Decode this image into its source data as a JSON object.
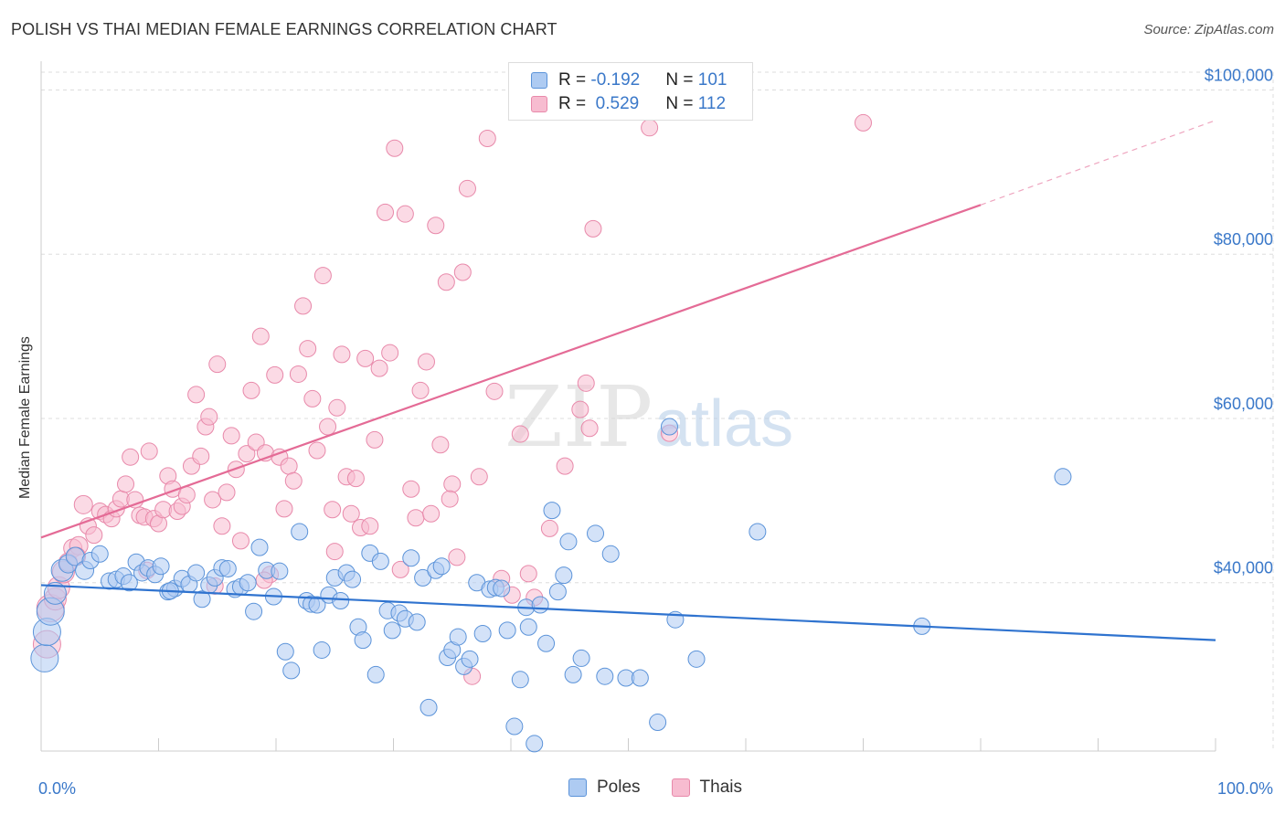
{
  "title": "POLISH VS THAI MEDIAN FEMALE EARNINGS CORRELATION CHART",
  "source": "Source: ZipAtlas.com",
  "watermark": {
    "zip": "ZIP",
    "atlas": "atlas"
  },
  "colors": {
    "poles_fill": "#aecbf2",
    "poles_stroke": "#5b93d9",
    "poles_line": "#2f73cf",
    "thais_fill": "#f7bcd0",
    "thais_stroke": "#e889aa",
    "thais_line": "#e46b96",
    "tick_text": "#3a78c9",
    "grid": "#dddddd"
  },
  "legend": {
    "rows": [
      {
        "r_label": "R = ",
        "r_value": "-0.192",
        "n_label": "N = ",
        "n_value": "101"
      },
      {
        "r_label": "R = ",
        "r_value": " 0.529",
        "n_label": "N = ",
        "n_value": "112"
      }
    ]
  },
  "bottom_legend": {
    "poles": "Poles",
    "thais": "Thais"
  },
  "chart_data": {
    "type": "scatter",
    "title": "POLISH VS THAI MEDIAN FEMALE EARNINGS CORRELATION CHART",
    "xlabel": "",
    "ylabel": "Median Female Earnings",
    "xlim": [
      0,
      100
    ],
    "ylim": [
      19500,
      103500
    ],
    "x_tick_labels": [
      "0.0%",
      "100.0%"
    ],
    "y_ticks": [
      40000,
      60000,
      80000,
      100000
    ],
    "y_tick_labels": [
      "$40,000",
      "$60,000",
      "$80,000",
      "$100,000"
    ],
    "grid": true,
    "series": [
      {
        "name": "Poles",
        "r": -0.192,
        "n": 101,
        "trend": {
          "x0": 0,
          "y0": 39700,
          "x1": 100,
          "y1": 33000,
          "dashed_from": null
        },
        "points": [
          [
            0.3,
            30800
          ],
          [
            0.5,
            34000
          ],
          [
            0.8,
            36500
          ],
          [
            1.2,
            38700
          ],
          [
            1.8,
            41500
          ],
          [
            2.3,
            42300
          ],
          [
            2.9,
            43200
          ],
          [
            3.7,
            41500
          ],
          [
            4.2,
            42700
          ],
          [
            5.0,
            43500
          ],
          [
            5.8,
            40200
          ],
          [
            6.4,
            40400
          ],
          [
            7.0,
            40800
          ],
          [
            7.5,
            40000
          ],
          [
            8.1,
            42500
          ],
          [
            8.6,
            41200
          ],
          [
            9.1,
            41800
          ],
          [
            9.7,
            41000
          ],
          [
            10.2,
            42000
          ],
          [
            10.8,
            38900
          ],
          [
            11.4,
            39300
          ],
          [
            12.0,
            40500
          ],
          [
            12.6,
            39800
          ],
          [
            13.2,
            41200
          ],
          [
            13.7,
            38000
          ],
          [
            14.3,
            39700
          ],
          [
            14.8,
            40600
          ],
          [
            15.4,
            41800
          ],
          [
            15.9,
            41700
          ],
          [
            16.5,
            39200
          ],
          [
            17.0,
            39500
          ],
          [
            17.6,
            40000
          ],
          [
            18.1,
            36500
          ],
          [
            18.6,
            44300
          ],
          [
            19.2,
            41500
          ],
          [
            19.8,
            38300
          ],
          [
            20.3,
            41400
          ],
          [
            20.8,
            31600
          ],
          [
            21.3,
            29300
          ],
          [
            22.0,
            46200
          ],
          [
            22.6,
            37800
          ],
          [
            23.0,
            37400
          ],
          [
            23.5,
            37300
          ],
          [
            23.9,
            31800
          ],
          [
            24.5,
            38500
          ],
          [
            25.0,
            40600
          ],
          [
            25.5,
            37800
          ],
          [
            26.0,
            41200
          ],
          [
            26.5,
            40400
          ],
          [
            27.0,
            34600
          ],
          [
            27.4,
            33000
          ],
          [
            28.0,
            43600
          ],
          [
            28.5,
            28800
          ],
          [
            28.9,
            42600
          ],
          [
            29.5,
            36600
          ],
          [
            29.9,
            34200
          ],
          [
            30.5,
            36300
          ],
          [
            31.0,
            35600
          ],
          [
            31.5,
            43000
          ],
          [
            32.0,
            35200
          ],
          [
            32.5,
            40600
          ],
          [
            33.0,
            24800
          ],
          [
            33.6,
            41500
          ],
          [
            34.1,
            42000
          ],
          [
            34.6,
            30900
          ],
          [
            35.0,
            31800
          ],
          [
            35.5,
            33400
          ],
          [
            36.0,
            29800
          ],
          [
            36.5,
            30700
          ],
          [
            37.1,
            40000
          ],
          [
            37.6,
            33800
          ],
          [
            38.2,
            39200
          ],
          [
            38.7,
            39400
          ],
          [
            39.2,
            39300
          ],
          [
            39.7,
            34200
          ],
          [
            40.3,
            22500
          ],
          [
            40.8,
            28200
          ],
          [
            41.3,
            37000
          ],
          [
            42.0,
            20400
          ],
          [
            42.5,
            37300
          ],
          [
            43.0,
            32600
          ],
          [
            43.5,
            48800
          ],
          [
            44.0,
            38900
          ],
          [
            44.5,
            40900
          ],
          [
            44.9,
            45000
          ],
          [
            45.3,
            28800
          ],
          [
            46.0,
            30800
          ],
          [
            47.2,
            46000
          ],
          [
            48.0,
            28600
          ],
          [
            48.5,
            43500
          ],
          [
            49.8,
            28400
          ],
          [
            51.0,
            28400
          ],
          [
            52.5,
            23000
          ],
          [
            53.5,
            59000
          ],
          [
            54.0,
            35500
          ],
          [
            55.8,
            30700
          ],
          [
            61.0,
            46200
          ],
          [
            75.0,
            34700
          ],
          [
            87.0,
            52900
          ],
          [
            41.5,
            34600
          ],
          [
            11.0,
            39000
          ]
        ]
      },
      {
        "name": "Thais",
        "r": 0.529,
        "n": 112,
        "trend": {
          "x0": 0,
          "y0": 45500,
          "x1": 80,
          "y1": 86000,
          "dashed_from": 80,
          "x_end": 100,
          "y_end": 96300
        },
        "points": [
          [
            0.5,
            32500
          ],
          [
            0.8,
            36900
          ],
          [
            1.2,
            38000
          ],
          [
            1.5,
            39400
          ],
          [
            1.9,
            41300
          ],
          [
            2.3,
            42500
          ],
          [
            2.7,
            44200
          ],
          [
            3.2,
            44500
          ],
          [
            3.6,
            49500
          ],
          [
            4.0,
            46900
          ],
          [
            4.5,
            45800
          ],
          [
            5.0,
            48700
          ],
          [
            5.5,
            48300
          ],
          [
            6.0,
            47800
          ],
          [
            6.4,
            49000
          ],
          [
            6.8,
            50200
          ],
          [
            7.2,
            52000
          ],
          [
            7.6,
            55300
          ],
          [
            8.0,
            50100
          ],
          [
            8.4,
            48200
          ],
          [
            8.8,
            48000
          ],
          [
            9.2,
            56000
          ],
          [
            9.6,
            47800
          ],
          [
            10.0,
            47200
          ],
          [
            10.4,
            48900
          ],
          [
            10.8,
            53000
          ],
          [
            11.2,
            51400
          ],
          [
            11.6,
            48700
          ],
          [
            12.0,
            49300
          ],
          [
            12.4,
            50700
          ],
          [
            12.8,
            54200
          ],
          [
            13.2,
            62900
          ],
          [
            13.6,
            55400
          ],
          [
            14.0,
            59000
          ],
          [
            14.3,
            60200
          ],
          [
            14.6,
            50100
          ],
          [
            15.0,
            66600
          ],
          [
            15.4,
            46900
          ],
          [
            15.8,
            51000
          ],
          [
            16.2,
            57900
          ],
          [
            16.6,
            53800
          ],
          [
            17.0,
            45100
          ],
          [
            17.5,
            55700
          ],
          [
            17.9,
            63400
          ],
          [
            18.3,
            57100
          ],
          [
            18.7,
            70000
          ],
          [
            19.1,
            55800
          ],
          [
            19.5,
            41000
          ],
          [
            19.9,
            65300
          ],
          [
            20.3,
            55300
          ],
          [
            20.7,
            49000
          ],
          [
            21.1,
            54200
          ],
          [
            21.5,
            52400
          ],
          [
            21.9,
            65400
          ],
          [
            22.3,
            73700
          ],
          [
            22.7,
            68500
          ],
          [
            23.1,
            62400
          ],
          [
            23.5,
            56100
          ],
          [
            24.0,
            77400
          ],
          [
            24.4,
            59000
          ],
          [
            24.8,
            48900
          ],
          [
            25.2,
            61300
          ],
          [
            25.6,
            67800
          ],
          [
            26.0,
            52900
          ],
          [
            26.4,
            48400
          ],
          [
            26.8,
            52700
          ],
          [
            27.2,
            46700
          ],
          [
            27.6,
            67300
          ],
          [
            28.0,
            46900
          ],
          [
            28.4,
            57400
          ],
          [
            28.8,
            66100
          ],
          [
            29.3,
            85100
          ],
          [
            29.7,
            68000
          ],
          [
            30.1,
            92900
          ],
          [
            30.6,
            41600
          ],
          [
            31.0,
            84900
          ],
          [
            31.5,
            51400
          ],
          [
            31.9,
            47900
          ],
          [
            32.3,
            63400
          ],
          [
            32.8,
            66900
          ],
          [
            33.2,
            48400
          ],
          [
            33.6,
            83500
          ],
          [
            34.0,
            56800
          ],
          [
            34.5,
            76600
          ],
          [
            35.0,
            52000
          ],
          [
            35.4,
            43100
          ],
          [
            35.9,
            77800
          ],
          [
            36.3,
            88000
          ],
          [
            36.7,
            28600
          ],
          [
            37.3,
            52900
          ],
          [
            38.0,
            94100
          ],
          [
            38.6,
            63300
          ],
          [
            39.2,
            40500
          ],
          [
            40.1,
            38500
          ],
          [
            40.8,
            58100
          ],
          [
            41.5,
            41100
          ],
          [
            42.0,
            38200
          ],
          [
            43.3,
            46600
          ],
          [
            44.6,
            54200
          ],
          [
            45.9,
            61100
          ],
          [
            46.4,
            64300
          ],
          [
            46.7,
            58800
          ],
          [
            47.0,
            83100
          ],
          [
            51.8,
            95400
          ],
          [
            53.5,
            58200
          ],
          [
            70.0,
            96000
          ],
          [
            14.8,
            39600
          ],
          [
            25.0,
            43800
          ],
          [
            34.8,
            50200
          ],
          [
            19.0,
            40300
          ],
          [
            9.0,
            41500
          ],
          [
            3.0,
            43200
          ]
        ]
      }
    ]
  }
}
